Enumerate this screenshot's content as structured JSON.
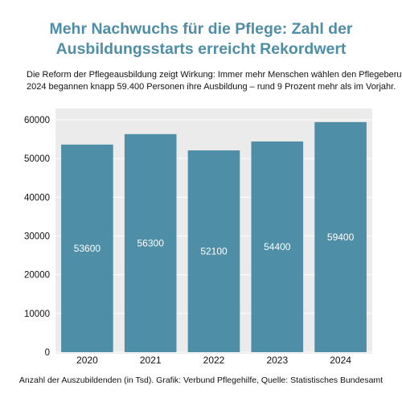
{
  "header": {
    "title_line1": "Mehr Nachwuchs für die Pflege: Zahl der",
    "title_line2": "Ausbildungsstarts erreicht Rekordwert",
    "subtitle_line1": "Die Reform der Pflegeausbildung zeigt Wirkung: Immer mehr Menschen wählen den Pflegeberuf.",
    "subtitle_line2": "2024 begannen knapp 59.400 Personen ihre Ausbildung – rund 9 Prozent mehr als im Vorjahr."
  },
  "footer": {
    "note": "Anzahl der Auszubildenden (in Tsd). Grafik: Verbund Pflegehilfe, Quelle: Statistisches Bundesamt"
  },
  "colors": {
    "bar": "#4e8ea6",
    "title": "#4e8ea6",
    "panel": "#ebebeb",
    "grid": "#ffffff"
  },
  "chart_data": {
    "type": "bar",
    "categories": [
      "2020",
      "2021",
      "2022",
      "2023",
      "2024"
    ],
    "values": [
      53600,
      56300,
      52100,
      54400,
      59400
    ],
    "ylim": [
      0,
      60000
    ],
    "yticks": [
      0,
      10000,
      20000,
      30000,
      40000,
      50000,
      60000
    ],
    "grid": true,
    "data_labels": true
  }
}
